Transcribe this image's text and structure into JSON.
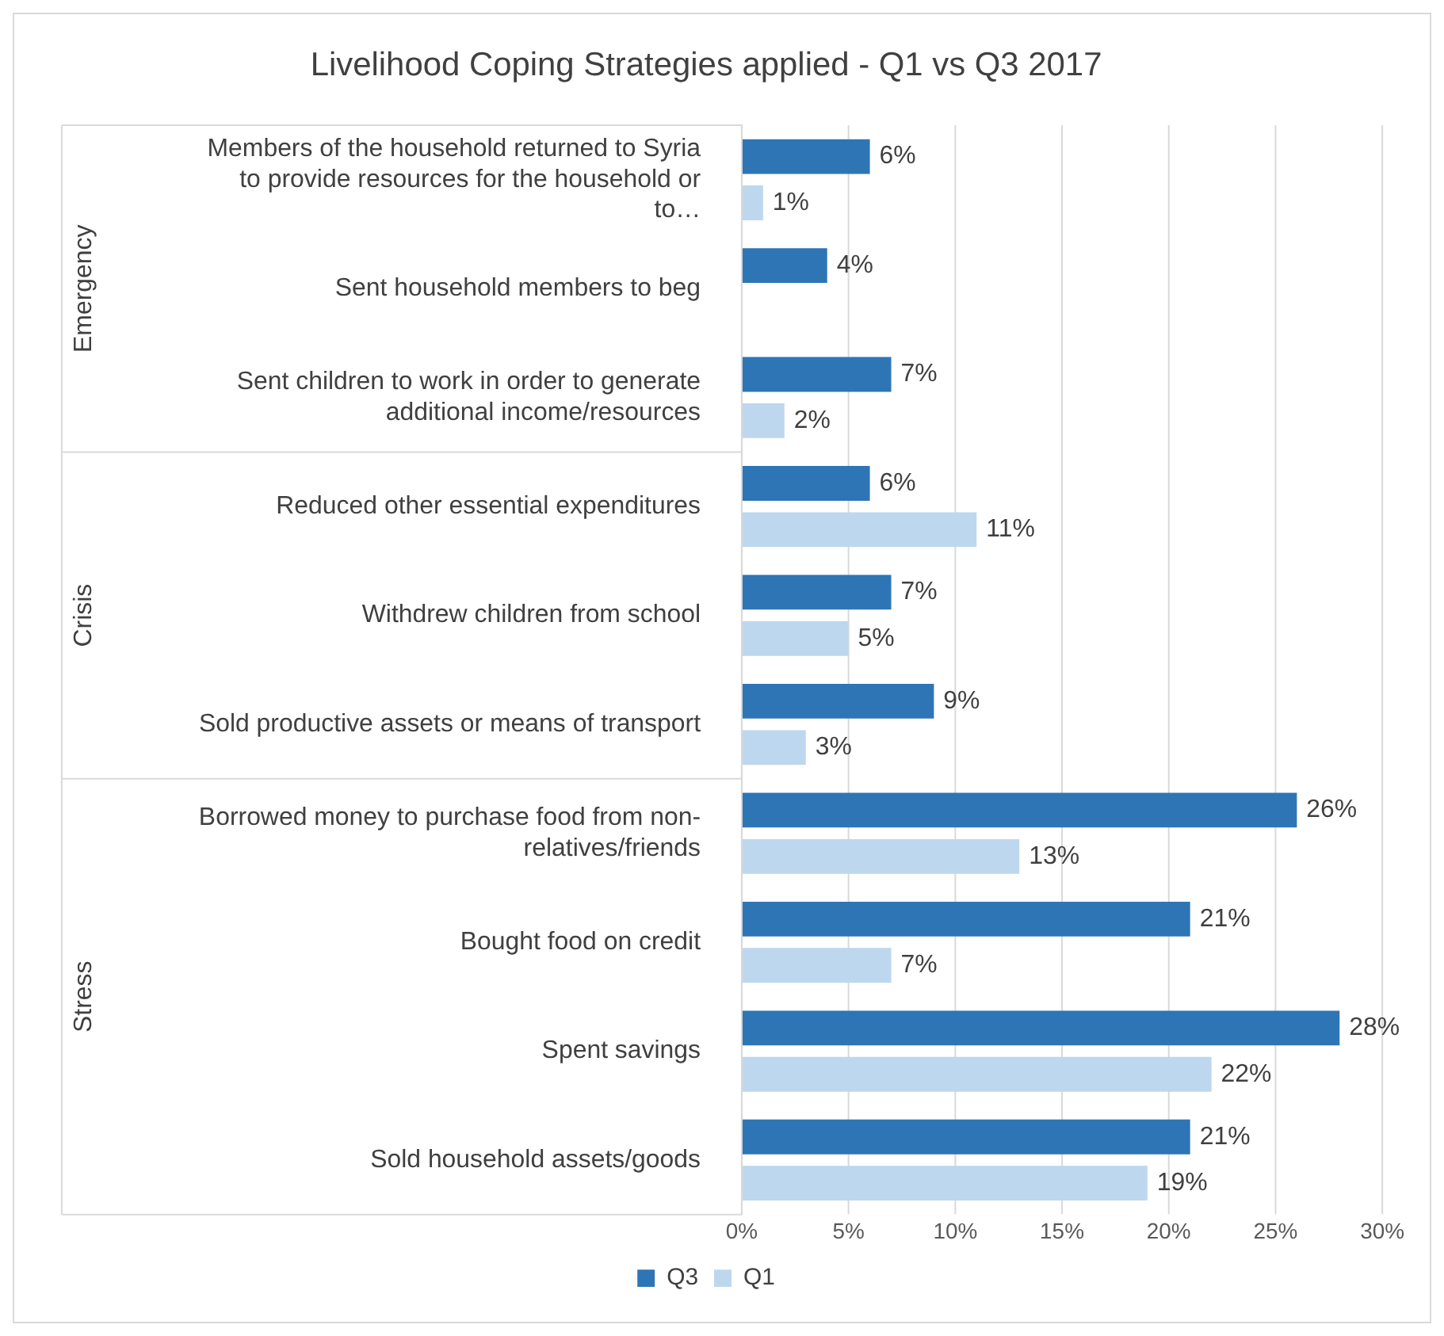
{
  "chart_data": {
    "type": "bar",
    "orientation": "horizontal",
    "title": "Livelihood Coping Strategies applied - Q1 vs Q3 2017",
    "categories": [
      "Members of the household returned to Syria to provide resources for the household or to…",
      "Sent household members to beg",
      "Sent children to work in order to generate additional income/resources",
      "Reduced other essential expenditures",
      "Withdrew children from school",
      "Sold productive assets or means of transport",
      "Borrowed money to purchase food from non-relatives/friends",
      "Bought food on credit",
      "Spent savings",
      "Sold household assets/goods"
    ],
    "series": [
      {
        "name": "Q3",
        "color": "#2e75b6",
        "values": [
          6,
          4,
          7,
          6,
          7,
          9,
          26,
          21,
          28,
          21
        ],
        "value_labels": [
          "6%",
          "4%",
          "7%",
          "6%",
          "7%",
          "9%",
          "26%",
          "21%",
          "28%",
          "21%"
        ]
      },
      {
        "name": "Q1",
        "color": "#bdd7ee",
        "values": [
          1,
          null,
          2,
          11,
          5,
          3,
          13,
          7,
          22,
          19
        ],
        "value_labels": [
          "1%",
          null,
          "2%",
          "11%",
          "5%",
          "3%",
          "13%",
          "7%",
          "22%",
          "19%"
        ]
      }
    ],
    "xlim": [
      0,
      30
    ],
    "xticks": [
      {
        "value": 0,
        "label": "0%"
      },
      {
        "value": 5,
        "label": "5%"
      },
      {
        "value": 10,
        "label": "10%"
      },
      {
        "value": 15,
        "label": "15%"
      },
      {
        "value": 20,
        "label": "20%"
      },
      {
        "value": 25,
        "label": "25%"
      },
      {
        "value": 30,
        "label": "30%"
      }
    ],
    "annotations": [
      "Emergency",
      "Crisis",
      "Stress"
    ],
    "grid": "x",
    "legend": "bottom"
  }
}
